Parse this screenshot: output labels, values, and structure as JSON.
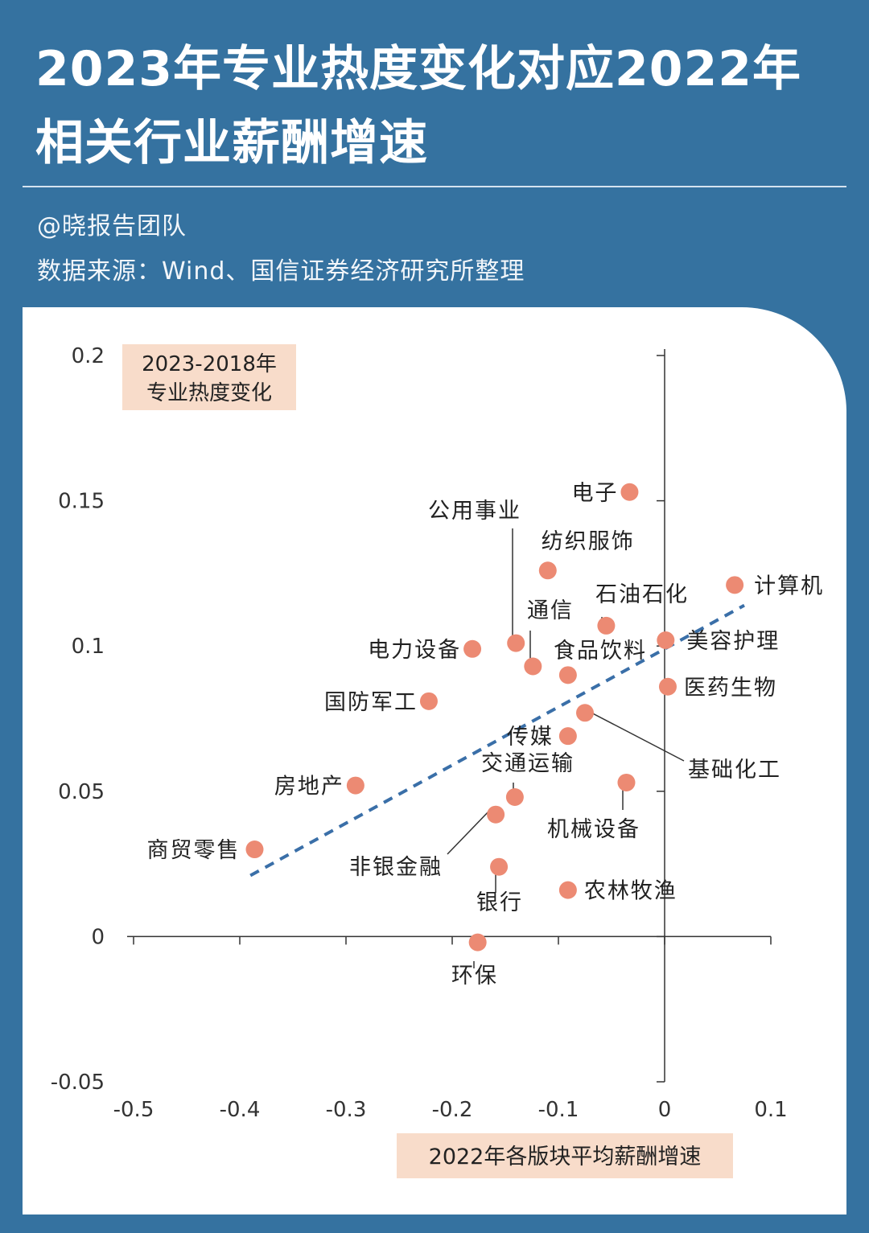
{
  "header": {
    "title": "2023年专业热度变化对应2022年相关行业薪酬增速",
    "author": "@晓报告团队",
    "source": "数据来源：Wind、国信证券经济研究所整理"
  },
  "colors": {
    "background": "#3572a0",
    "point": "#ec8a73",
    "trendline": "#3a6fa8",
    "label_box": "#f8dcca"
  },
  "chart_data": {
    "type": "scatter",
    "ylabel": "2023-2018年专业热度变化",
    "xlabel": "2022年各版块平均薪酬增速",
    "xlim": [
      -0.5,
      0.1
    ],
    "ylim": [
      -0.05,
      0.2
    ],
    "x_ticks": [
      "-0.5",
      "-0.4",
      "-0.3",
      "-0.2",
      "-0.1",
      "0",
      "0.1"
    ],
    "y_ticks": [
      "0.2",
      "0.15",
      "0.1",
      "0.05",
      "0",
      "-0.05"
    ],
    "grid": false,
    "trendline": {
      "style": "dashed",
      "from": [
        -0.39,
        0.021
      ],
      "to": [
        0.075,
        0.114
      ]
    },
    "points": [
      {
        "name": "电子",
        "x": -0.033,
        "y": 0.153
      },
      {
        "name": "计算机",
        "x": 0.066,
        "y": 0.121
      },
      {
        "name": "纺织服饰",
        "x": -0.11,
        "y": 0.126
      },
      {
        "name": "石油石化",
        "x": -0.055,
        "y": 0.107
      },
      {
        "name": "美容护理",
        "x": 0.001,
        "y": 0.102
      },
      {
        "name": "公用事业",
        "x": -0.14,
        "y": 0.101
      },
      {
        "name": "电力设备",
        "x": -0.181,
        "y": 0.099
      },
      {
        "name": "通信",
        "x": -0.124,
        "y": 0.093
      },
      {
        "name": "食品饮料",
        "x": -0.091,
        "y": 0.09
      },
      {
        "name": "医药生物",
        "x": 0.003,
        "y": 0.086
      },
      {
        "name": "国防军工",
        "x": -0.222,
        "y": 0.081
      },
      {
        "name": "基础化工",
        "x": -0.075,
        "y": 0.077
      },
      {
        "name": "传媒",
        "x": -0.091,
        "y": 0.069
      },
      {
        "name": "机械设备",
        "x": -0.036,
        "y": 0.053
      },
      {
        "name": "房地产",
        "x": -0.291,
        "y": 0.052
      },
      {
        "name": "交通运输",
        "x": -0.141,
        "y": 0.048
      },
      {
        "name": "非银金融",
        "x": -0.159,
        "y": 0.042
      },
      {
        "name": "商贸零售",
        "x": -0.386,
        "y": 0.03
      },
      {
        "name": "银行",
        "x": -0.156,
        "y": 0.024
      },
      {
        "name": "农林牧渔",
        "x": -0.091,
        "y": 0.016
      },
      {
        "name": "环保",
        "x": -0.176,
        "y": -0.002
      }
    ]
  }
}
